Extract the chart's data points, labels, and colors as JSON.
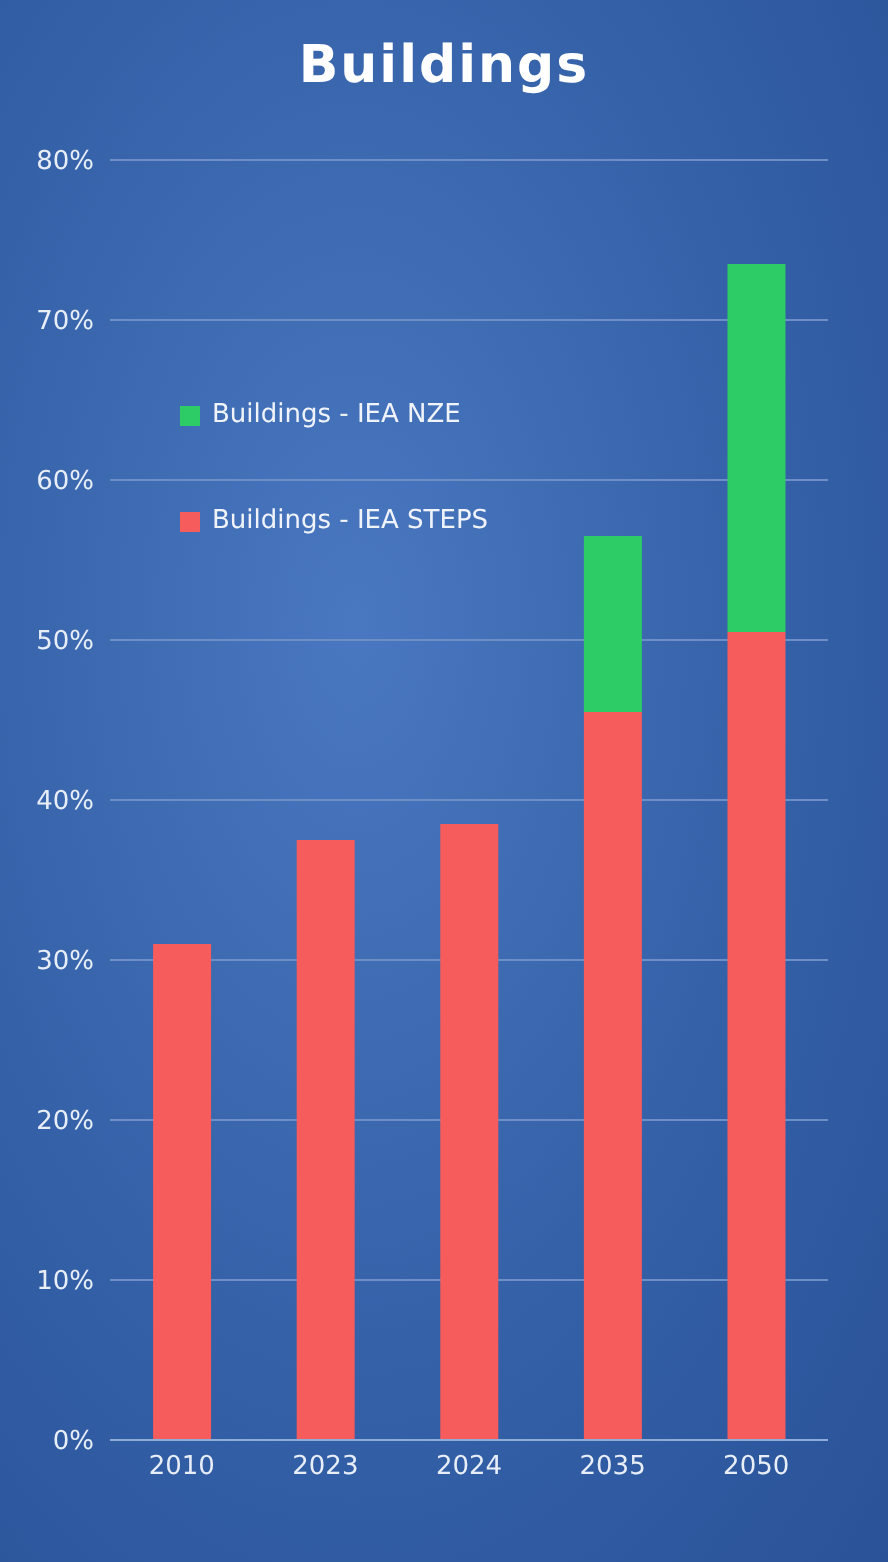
{
  "chart_data": {
    "type": "bar",
    "title": "Buildings",
    "categories": [
      "2010",
      "2023",
      "2024",
      "2035",
      "2050"
    ],
    "stacked": true,
    "series": [
      {
        "name": "Buildings - IEA STEPS",
        "color": "#f65c5c",
        "values": [
          31,
          37.5,
          38.5,
          45.5,
          50.5
        ]
      },
      {
        "name": "Buildings - IEA NZE",
        "color": "#2ecc66",
        "values": [
          null,
          null,
          null,
          11,
          23
        ]
      }
    ],
    "ylim": [
      0,
      80
    ],
    "yticks": [
      {
        "value": 0,
        "label": "0%"
      },
      {
        "value": 10,
        "label": "10%"
      },
      {
        "value": 20,
        "label": "20%"
      },
      {
        "value": 30,
        "label": "30%"
      },
      {
        "value": 40,
        "label": "40%"
      },
      {
        "value": 50,
        "label": "50%"
      },
      {
        "value": 60,
        "label": "60%"
      },
      {
        "value": 70,
        "label": "70%"
      },
      {
        "value": 80,
        "label": "80%"
      }
    ],
    "grid": "y",
    "legend": "top left"
  }
}
